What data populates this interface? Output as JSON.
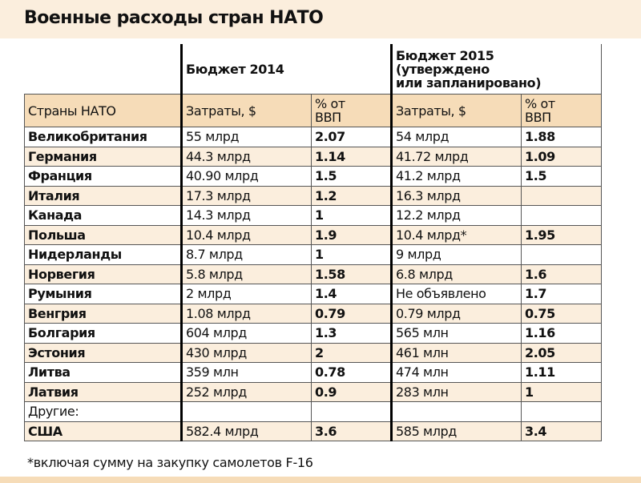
{
  "header": {
    "title": "Военные расходы стран НАТО"
  },
  "table": {
    "group_headers": [
      "Бюджет 2014",
      "Бюджет 2015\n(утверждено\nили запланировано)"
    ],
    "columns": [
      "Страны НАТО",
      "Затраты, $",
      "% от\nВВП",
      "Затраты, $",
      "% от\nВВП"
    ],
    "rows": [
      [
        "Великобритания",
        "55 млрд",
        "2.07",
        "54 млрд",
        "1.88"
      ],
      [
        "Германия",
        "44.3 млрд",
        "1.14",
        "41.72 млрд",
        "1.09"
      ],
      [
        "Франция",
        "40.90 млрд",
        "1.5",
        "41.2 млрд",
        "1.5"
      ],
      [
        "Италия",
        "17.3 млрд",
        "1.2",
        "16.3 млрд",
        null
      ],
      [
        "Канада",
        "14.3 млрд",
        "1",
        "12.2 млрд",
        null
      ],
      [
        "Польша",
        "10.4 млрд",
        "1.9",
        "10.4 млрд*",
        "1.95"
      ],
      [
        "Нидерланды",
        "8.7 млрд",
        "1",
        "9 млрд",
        null
      ],
      [
        "Норвегия",
        "5.8 млрд",
        "1.58",
        "6.8 млрд",
        "1.6"
      ],
      [
        "Румыния",
        "2 млрд",
        "1.4",
        "Не объявлено",
        "1.7"
      ],
      [
        "Венгрия",
        "1.08 млрд",
        "0.79",
        "0.79 млрд",
        "0.75"
      ],
      [
        "Болгария",
        "604 млрд",
        "1.3",
        "565 млн",
        "1.16"
      ],
      [
        "Эстония",
        "430 млрд",
        "2",
        "461 млн",
        "2.05"
      ],
      [
        "Литва",
        "359 млн",
        "0.78",
        "474 млн",
        "1.11"
      ],
      [
        "Латвия",
        "252 млрд",
        "0.9",
        "283 млн",
        "1"
      ],
      [
        "Другие:",
        null,
        null,
        null,
        null
      ],
      [
        "США",
        "582.4 млрд",
        "3.6",
        "585 млрд",
        "3.4"
      ]
    ]
  },
  "footnote": "*включая сумму на закупку самолетов  F-16"
}
